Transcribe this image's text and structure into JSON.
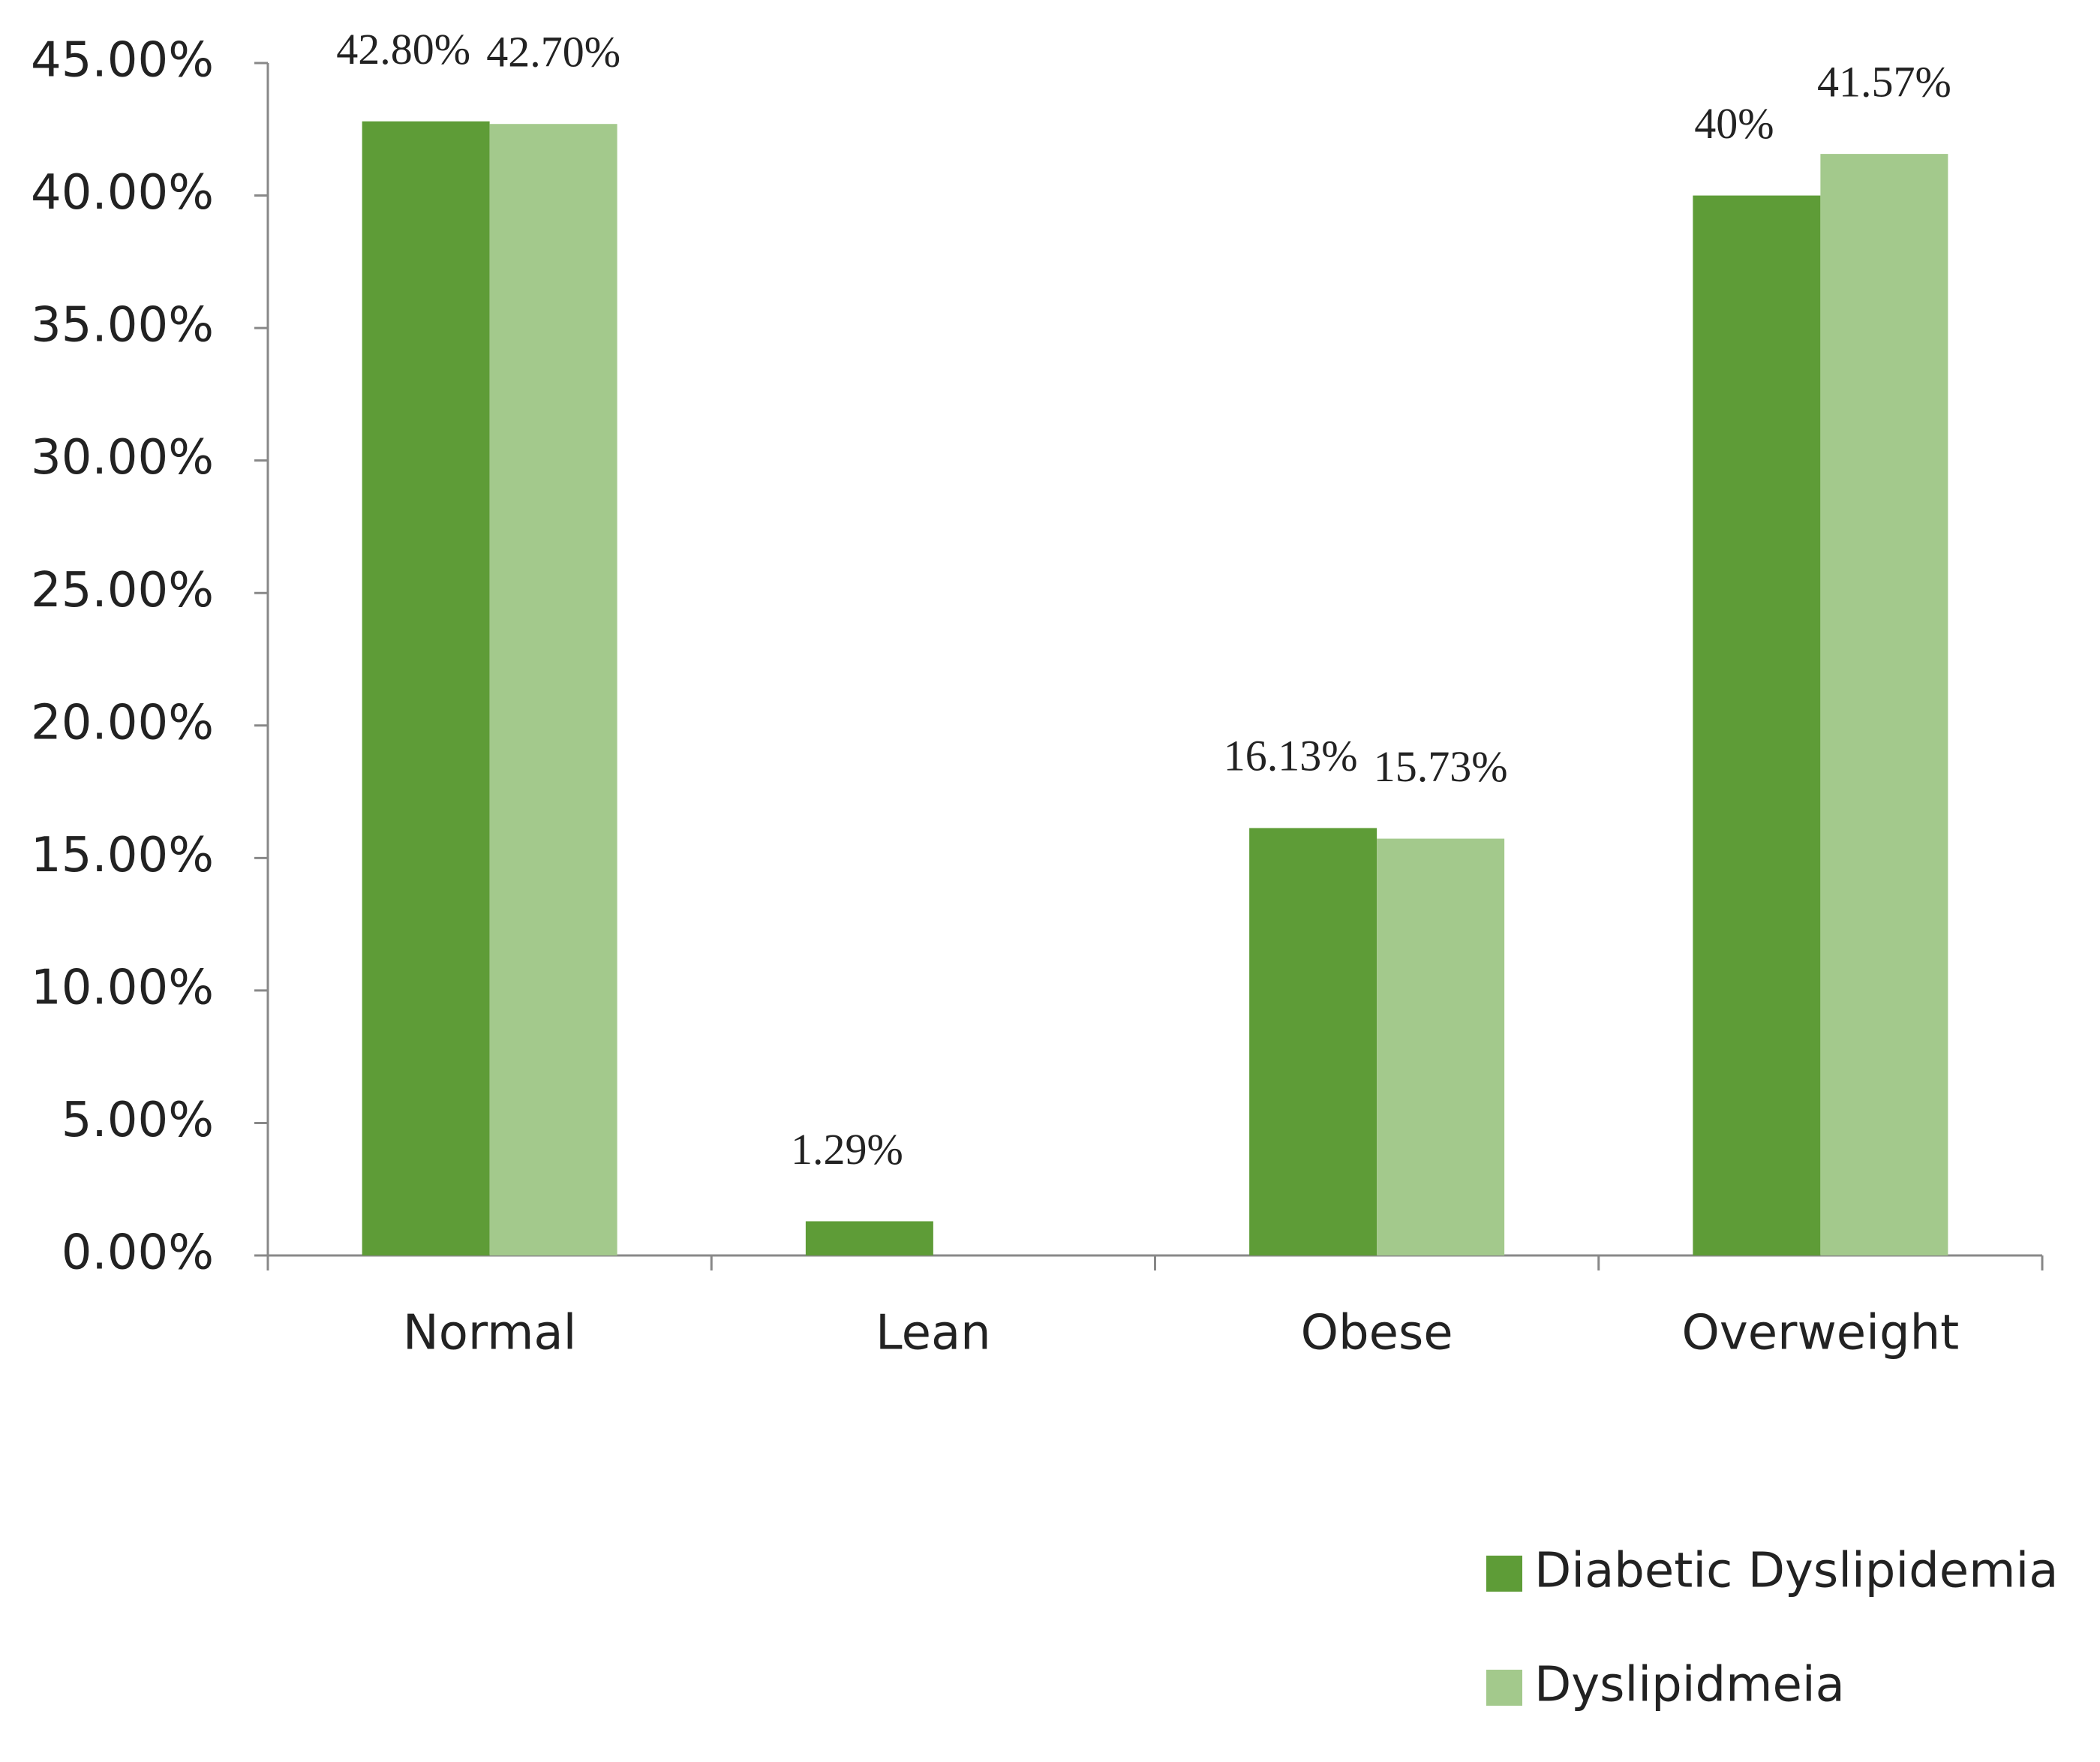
{
  "chart_data": {
    "type": "bar",
    "categories": [
      "Normal",
      "Lean",
      "Obese",
      "Overweight"
    ],
    "series": [
      {
        "name": "Diabetic Dyslipidemia",
        "color": "#5e9c37",
        "values": [
          42.8,
          1.29,
          16.13,
          40
        ],
        "value_labels": [
          "42.80%",
          "1.29%",
          "16.13%",
          "40%"
        ]
      },
      {
        "name": "Dyslipidmeia",
        "color": "#a3c98c",
        "values": [
          42.7,
          null,
          15.73,
          41.57
        ],
        "value_labels": [
          "42.70%",
          null,
          "15.73%",
          "41.57%"
        ]
      }
    ],
    "ylim": [
      0,
      45
    ],
    "yticks": [
      {
        "value": 0,
        "label": "0.00%"
      },
      {
        "value": 5,
        "label": "5.00%"
      },
      {
        "value": 10,
        "label": "10.00%"
      },
      {
        "value": 15,
        "label": "15.00%"
      },
      {
        "value": 20,
        "label": "20.00%"
      },
      {
        "value": 25,
        "label": "25.00%"
      },
      {
        "value": 30,
        "label": "30.00%"
      },
      {
        "value": 35,
        "label": "35.00%"
      },
      {
        "value": 40,
        "label": "40.00%"
      },
      {
        "value": 45,
        "label": "45.00%"
      }
    ],
    "legend": "bottom-right",
    "grid": false
  }
}
